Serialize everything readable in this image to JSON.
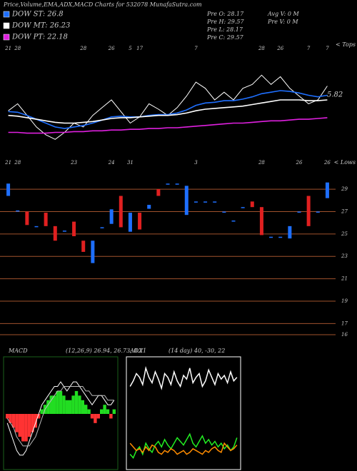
{
  "chart_data": [
    {
      "type": "line",
      "title": "Price,Volume,EMA,ADX,MACD Charts for 532078 MunafaSutra.com",
      "info": [
        "Pre  O: 28.17",
        "Pre  H: 29.57",
        "Pre  L: 28.17",
        "Pre  C: 29.57",
        "Avg V: 0  M",
        "Pre  V: 0  M"
      ],
      "annotations": [
        "5.82",
        "< Tops"
      ],
      "categories": [
        "21",
        "28",
        null,
        null,
        null,
        null,
        null,
        null,
        "28",
        null,
        null,
        "26",
        null,
        "5",
        "17",
        null,
        null,
        null,
        null,
        null,
        "7",
        null,
        null,
        null,
        null,
        null,
        null,
        "28",
        null,
        "26",
        null,
        null,
        "7",
        null,
        "7"
      ],
      "ylim": [
        20,
        32
      ],
      "series": [
        {
          "color": "#ffffff",
          "values": [
            24.6,
            25.5,
            24,
            22.5,
            21.5,
            20.9,
            21.8,
            23,
            22.5,
            24,
            25,
            26,
            24.5,
            23,
            23.8,
            25.5,
            24.8,
            24,
            25,
            26.5,
            28.3,
            27.5,
            26,
            27,
            26,
            27.5,
            28,
            29.2,
            28,
            29,
            27.5,
            26.5,
            25.5,
            26,
            27.8
          ]
        },
        {
          "name": "DOW ST: 26.8",
          "color": "#1e6fff",
          "values": [
            24.5,
            24.4,
            24,
            23.5,
            23,
            22.5,
            22.3,
            22.5,
            22.7,
            23,
            23.4,
            23.8,
            23.9,
            23.8,
            23.8,
            24,
            24.1,
            24.1,
            24.3,
            24.7,
            25.3,
            25.6,
            25.7,
            25.9,
            25.9,
            26.1,
            26.4,
            26.8,
            27,
            27.2,
            27.1,
            26.9,
            26.6,
            26.4,
            26.6
          ]
        },
        {
          "name": "DOW MT: 26.23",
          "color": "#ffffff",
          "values": [
            24,
            23.9,
            23.7,
            23.5,
            23.3,
            23.1,
            23,
            23,
            23.1,
            23.2,
            23.4,
            23.6,
            23.7,
            23.7,
            23.8,
            23.9,
            24,
            24,
            24.1,
            24.3,
            24.6,
            24.8,
            24.9,
            25,
            25.1,
            25.2,
            25.4,
            25.6,
            25.8,
            26,
            26,
            26,
            25.9,
            25.9,
            26
          ]
        },
        {
          "name": "DOW PT: 22.18",
          "color": "#e020e0",
          "values": [
            21.8,
            21.8,
            21.7,
            21.7,
            21.7,
            21.8,
            21.8,
            21.9,
            21.9,
            22,
            22,
            22.1,
            22.1,
            22.2,
            22.2,
            22.3,
            22.3,
            22.4,
            22.4,
            22.5,
            22.6,
            22.7,
            22.8,
            22.9,
            23,
            23,
            23.1,
            23.2,
            23.3,
            23.3,
            23.4,
            23.5,
            23.5,
            23.6,
            23.7
          ]
        }
      ]
    },
    {
      "type": "candlestick",
      "annotations": [
        "< Lows"
      ],
      "categories": [
        "21",
        "28",
        null,
        null,
        null,
        null,
        null,
        "23",
        null,
        null,
        null,
        "24",
        null,
        "31",
        null,
        null,
        null,
        null,
        null,
        null,
        "3",
        null,
        null,
        null,
        null,
        null,
        null,
        "28",
        null,
        null,
        null,
        "26",
        null,
        null,
        "26"
      ],
      "open": [
        28.4,
        27.1,
        27.0,
        25.7,
        26.9,
        25.7,
        25.3,
        26.1,
        24.4,
        22.4,
        25.6,
        25.9,
        28.4,
        25.2,
        26.9,
        27.25,
        29.0,
        29.5,
        29.5,
        26.7,
        27.9,
        27.9,
        27.9,
        27.0,
        26.2,
        27.4,
        27.9,
        27.4,
        24.75,
        24.75,
        24.6,
        27.0,
        28.4,
        27.0,
        28.2
      ],
      "close": [
        29.5,
        27.1,
        25.8,
        25.7,
        25.7,
        24.4,
        25.3,
        24.8,
        23.4,
        24.4,
        25.6,
        27.2,
        25.6,
        26.9,
        25.4,
        27.6,
        28.4,
        29.5,
        29.5,
        29.3,
        27.9,
        27.9,
        27.9,
        27.0,
        26.2,
        27.4,
        27.4,
        24.9,
        24.75,
        24.75,
        25.7,
        27.0,
        25.7,
        27.0,
        29.6
      ],
      "up_color": "#1e6fff",
      "down_color": "#e02020",
      "ylim": [
        15.3,
        30.6
      ],
      "yticks": [
        29,
        27,
        25,
        23,
        21,
        19,
        17,
        16
      ],
      "grid": true,
      "grid_color": "#a0522d"
    },
    {
      "type": "bar",
      "title": "MACD",
      "subtitle": "(12,26,9) 26.94, 26.73, 0.21",
      "ylim": [
        -12,
        12
      ],
      "values": [
        -1,
        -2,
        -3,
        -4,
        -5,
        -6,
        -6,
        -5,
        -4,
        -3,
        -1,
        1,
        2,
        3,
        4,
        4,
        5,
        5,
        4,
        3,
        3,
        4,
        5,
        4,
        3,
        2,
        1,
        -1,
        -2,
        -1,
        1,
        2,
        1,
        -1,
        1
      ],
      "up_color": "#22dd22",
      "down_color": "#ff3333",
      "series": [
        {
          "color": "#ffffff",
          "values": [
            -2,
            -4,
            -6,
            -8,
            -9,
            -9,
            -8,
            -6,
            -4,
            -2,
            0,
            2,
            3,
            4,
            5,
            6,
            6,
            7,
            6,
            5,
            6,
            7,
            7,
            6,
            5,
            4,
            3,
            2,
            3,
            4,
            4,
            3,
            2,
            2,
            3
          ]
        },
        {
          "color": "#bbbbbb",
          "values": [
            -1,
            -2,
            -3,
            -5,
            -6,
            -7,
            -7,
            -7,
            -6,
            -5,
            -3,
            -1,
            1,
            2,
            3,
            4,
            5,
            5,
            6,
            6,
            6,
            6,
            6,
            6,
            6,
            5,
            5,
            4,
            4,
            4,
            4,
            4,
            3,
            3,
            3
          ]
        }
      ]
    },
    {
      "type": "line",
      "title": "ADX",
      "subtitle": "(14 day) 40, -30, 22",
      "ylim": [
        0,
        60
      ],
      "series": [
        {
          "color": "#ffffff",
          "values": [
            45,
            48,
            52,
            50,
            46,
            55,
            50,
            47,
            53,
            49,
            44,
            52,
            50,
            46,
            53,
            48,
            45,
            51,
            49,
            55,
            47,
            50,
            52,
            45,
            48,
            54,
            50,
            46,
            52,
            49,
            51,
            47,
            53,
            48,
            50
          ]
        },
        {
          "color": "#22ee22",
          "values": [
            8,
            6,
            10,
            12,
            8,
            14,
            11,
            9,
            13,
            15,
            12,
            16,
            13,
            11,
            14,
            17,
            15,
            13,
            16,
            19,
            14,
            12,
            15,
            18,
            14,
            16,
            13,
            15,
            12,
            14,
            11,
            13,
            10,
            12,
            17
          ]
        },
        {
          "color": "#ff8c00",
          "values": [
            14,
            12,
            10,
            11,
            9,
            12,
            10,
            13,
            12,
            9,
            8,
            10,
            9,
            11,
            10,
            8,
            9,
            10,
            8,
            9,
            11,
            10,
            9,
            8,
            10,
            9,
            11,
            12,
            10,
            9,
            14,
            12,
            10,
            11,
            13
          ]
        }
      ]
    }
  ]
}
